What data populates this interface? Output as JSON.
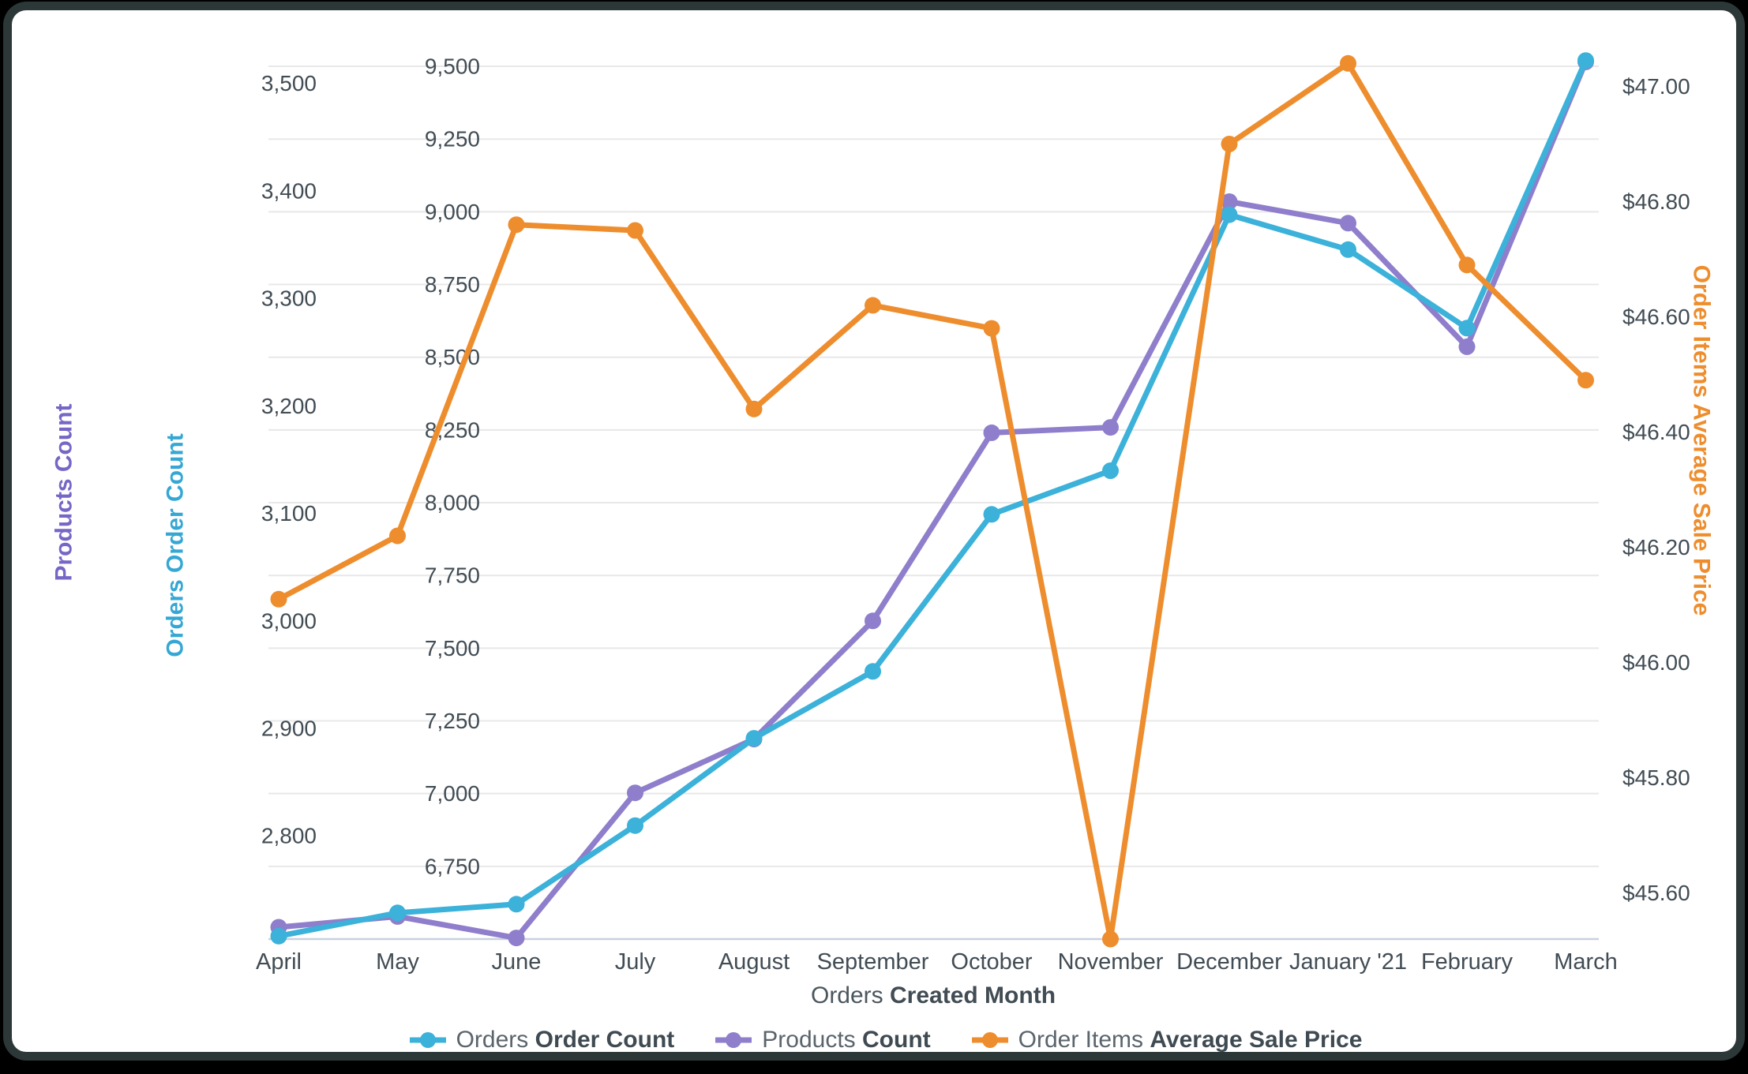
{
  "window": {
    "background": "#000000",
    "frame_color": "#2c3837",
    "card_color": "#ffffff"
  },
  "chart_data": {
    "type": "line",
    "title": "",
    "grid": true,
    "legend_position": "bottom",
    "categories": [
      "April",
      "May",
      "June",
      "July",
      "August",
      "September",
      "October",
      "November",
      "December",
      "January '21",
      "February",
      "March"
    ],
    "x_axis": {
      "title_prefix": "Orders",
      "title_bold": "Created Month"
    },
    "axes": {
      "products": {
        "title": "Products Count",
        "title_color": "#7666c5",
        "tick_color": "#414c54",
        "min": 2704,
        "max": 3524,
        "ticks": [
          2800,
          2900,
          3000,
          3100,
          3200,
          3300,
          3400,
          3500
        ]
      },
      "orders": {
        "title": "Orders Order Count",
        "title_color": "#35a7d4",
        "tick_color": "#414c54",
        "min": 6500,
        "max": 9530,
        "ticks": [
          6750,
          7000,
          7250,
          7500,
          7750,
          8000,
          8250,
          8500,
          8750,
          9000,
          9250,
          9500
        ],
        "gridlines": true
      },
      "price": {
        "title": "Order Items Average Sale Price",
        "title_color": "#ee8d2d",
        "tick_color": "#414c54",
        "tick_prefix": "$",
        "min": 45.52,
        "max": 47.05,
        "ticks": [
          45.6,
          45.8,
          46.0,
          46.2,
          46.4,
          46.6,
          46.8,
          47.0
        ]
      }
    },
    "series": [
      {
        "id": "orders-order-count",
        "label_prefix": "Orders",
        "label_bold": "Order Count",
        "axis": "orders",
        "color": "#3cb1d9",
        "values": [
          6510,
          6590,
          6620,
          6890,
          7190,
          7420,
          7960,
          8110,
          8990,
          8870,
          8600,
          9520
        ]
      },
      {
        "id": "products-count",
        "label_prefix": "Products",
        "label_bold": "Count",
        "axis": "products",
        "color": "#8f7ecb",
        "values": [
          2715,
          2725,
          2705,
          2840,
          2890,
          3000,
          3175,
          3180,
          3390,
          3370,
          3255,
          3520
        ]
      },
      {
        "id": "order-items-average-sale-price",
        "label_prefix": "Order Items",
        "label_bold": "Average Sale Price",
        "axis": "price",
        "color": "#ee8d2d",
        "values": [
          46.11,
          46.22,
          46.76,
          46.75,
          46.44,
          46.62,
          46.58,
          45.52,
          46.9,
          47.04,
          46.69,
          46.49
        ]
      }
    ],
    "style": {
      "gridline_color": "#e8e8e8",
      "baseline_color": "#c9d1df",
      "month_label_color": "#414c54",
      "x_title_prefix_color": "#4b565d",
      "x_title_bold_color": "#414c54"
    }
  }
}
